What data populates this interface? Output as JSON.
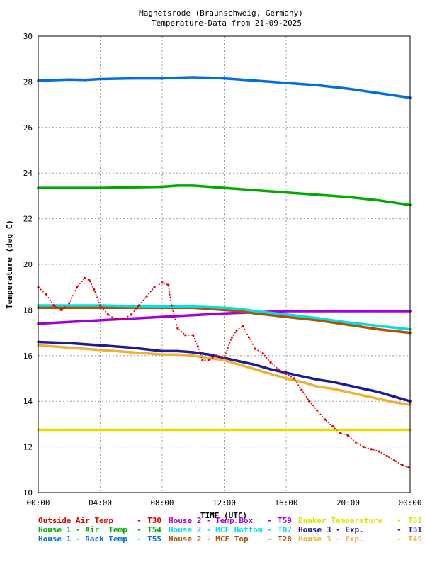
{
  "chart_data": {
    "type": "scatter",
    "title": "Magnetsrode (Braunschweig, Germany)",
    "subtitle": "Temperature-Data from 21-09-2025",
    "xlabel": "TIME (UTC)",
    "ylabel": "Temperature (deg C)",
    "xlim": [
      0,
      24
    ],
    "ylim": [
      10,
      30
    ],
    "xticks": [
      {
        "v": 0,
        "label": "00:00"
      },
      {
        "v": 4,
        "label": "04:00"
      },
      {
        "v": 8,
        "label": "08:00"
      },
      {
        "v": 12,
        "label": "12:00"
      },
      {
        "v": 16,
        "label": "16:00"
      },
      {
        "v": 20,
        "label": "20:00"
      },
      {
        "v": 24,
        "label": "00:00"
      }
    ],
    "yticks": [
      10,
      12,
      14,
      16,
      18,
      20,
      22,
      24,
      26,
      28,
      30
    ],
    "grid": true,
    "legend_position": "bottom",
    "series": [
      {
        "name": "Outside Air Temp",
        "code": "T30",
        "color": "#dd0000",
        "x": [
          0.0,
          0.5,
          1.0,
          1.5,
          2.0,
          2.5,
          3.0,
          3.3,
          3.6,
          4.0,
          4.5,
          5.0,
          5.5,
          6.0,
          6.5,
          7.0,
          7.5,
          8.0,
          8.4,
          8.6,
          9.0,
          9.5,
          10.0,
          10.3,
          10.6,
          11.0,
          11.5,
          12.0,
          12.5,
          12.8,
          13.2,
          13.6,
          14.0,
          14.5,
          15.0,
          15.5,
          16.0,
          16.5,
          17.0,
          17.5,
          18.0,
          18.5,
          19.0,
          19.5,
          20.0,
          20.5,
          21.0,
          21.5,
          22.0,
          22.5,
          23.0,
          23.5,
          23.9
        ],
        "y": [
          19.0,
          18.7,
          18.2,
          18.0,
          18.3,
          19.0,
          19.4,
          19.3,
          18.9,
          18.2,
          17.8,
          17.6,
          17.6,
          17.8,
          18.2,
          18.6,
          19.0,
          19.2,
          19.1,
          18.2,
          17.2,
          16.9,
          16.9,
          16.4,
          15.8,
          15.8,
          16.0,
          15.9,
          16.8,
          17.1,
          17.3,
          16.8,
          16.3,
          16.1,
          15.7,
          15.4,
          15.2,
          15.0,
          14.5,
          14.0,
          13.6,
          13.2,
          12.9,
          12.6,
          12.5,
          12.2,
          12.0,
          11.9,
          11.8,
          11.6,
          11.4,
          11.2,
          11.1
        ]
      },
      {
        "name": "House 1 - Air  Temp",
        "code": "T54",
        "color": "#00aa00",
        "x": [
          0,
          4,
          8,
          9,
          10,
          12,
          14,
          16,
          18,
          20,
          22,
          24
        ],
        "y": [
          23.35,
          23.35,
          23.4,
          23.45,
          23.45,
          23.35,
          23.25,
          23.15,
          23.05,
          22.95,
          22.8,
          22.6
        ]
      },
      {
        "name": "House 1 - Rack Temp",
        "code": "T55",
        "color": "#0070e0",
        "x": [
          0,
          2,
          3,
          4,
          6,
          8,
          9,
          10,
          11,
          12,
          14,
          16,
          18,
          20,
          22,
          24
        ],
        "y": [
          28.05,
          28.1,
          28.08,
          28.12,
          28.15,
          28.15,
          28.18,
          28.2,
          28.18,
          28.15,
          28.05,
          27.95,
          27.85,
          27.7,
          27.5,
          27.3
        ]
      },
      {
        "name": "House 2 - Temp.Box",
        "code": "T59",
        "color": "#a000e0",
        "x": [
          0,
          4,
          8,
          12,
          14,
          16,
          18,
          20,
          22,
          24
        ],
        "y": [
          17.4,
          17.55,
          17.7,
          17.85,
          17.9,
          17.95,
          17.95,
          17.95,
          17.95,
          17.95
        ]
      },
      {
        "name": "House 2 - MCF Bottom",
        "code": "T07",
        "color": "#00e0e0",
        "x": [
          0,
          4,
          8,
          10,
          12,
          13,
          14,
          16,
          18,
          20,
          22,
          24
        ],
        "y": [
          18.2,
          18.2,
          18.15,
          18.15,
          18.1,
          18.05,
          17.95,
          17.8,
          17.65,
          17.45,
          17.3,
          17.15
        ]
      },
      {
        "name": "House 3 - Exp.",
        "code": "T51",
        "color": "#1a1a9a",
        "x": [
          0,
          2,
          4,
          6,
          8,
          9,
          10,
          11,
          12,
          13,
          14,
          15,
          16,
          17,
          18,
          19,
          20,
          21,
          22,
          23,
          24
        ],
        "y": [
          16.6,
          16.55,
          16.45,
          16.35,
          16.2,
          16.2,
          16.15,
          16.05,
          15.9,
          15.75,
          15.6,
          15.4,
          15.25,
          15.1,
          14.95,
          14.85,
          14.7,
          14.55,
          14.4,
          14.2,
          14.0
        ]
      },
      {
        "name": "Bunker Temperature",
        "code": "T31",
        "color": "#e0e000",
        "x": [
          0,
          4,
          8,
          12,
          16,
          20,
          24
        ],
        "y": [
          12.75,
          12.75,
          12.75,
          12.75,
          12.75,
          12.75,
          12.75
        ]
      },
      {
        "name": "House 2 - MCF Top",
        "code": "T28",
        "color": "#b05000",
        "x": [
          0,
          4,
          8,
          10,
          12,
          13,
          14,
          16,
          18,
          20,
          22,
          24
        ],
        "y": [
          18.1,
          18.1,
          18.1,
          18.1,
          18.0,
          17.95,
          17.85,
          17.7,
          17.55,
          17.35,
          17.15,
          17.0
        ]
      },
      {
        "name": "House 3 - Exp.",
        "code": "T49",
        "color": "#f0b030",
        "x": [
          0,
          2,
          4,
          6,
          8,
          9,
          10,
          11,
          12,
          13,
          14,
          15,
          16,
          17,
          18,
          19,
          20,
          21,
          22,
          23,
          24
        ],
        "y": [
          16.45,
          16.35,
          16.25,
          16.15,
          16.05,
          16.05,
          16.0,
          15.9,
          15.8,
          15.6,
          15.4,
          15.2,
          15.0,
          14.85,
          14.65,
          14.55,
          14.4,
          14.25,
          14.1,
          13.95,
          13.85
        ]
      }
    ],
    "legend": [
      {
        "label": "Outside Air Temp    ",
        "code": "T30",
        "color": "#dd0000"
      },
      {
        "label": "House 2 - Temp.Box  ",
        "code": "T59",
        "color": "#a000e0"
      },
      {
        "label": "Bunker Temperature  ",
        "code": "T31",
        "color": "#e0e000"
      },
      {
        "label": "House 1 - Air  Temp ",
        "code": "T54",
        "color": "#00aa00"
      },
      {
        "label": "House 2 - MCF Bottom",
        "code": "T07",
        "color": "#00e0e0"
      },
      {
        "label": "House 3 - Exp.      ",
        "code": "T51",
        "color": "#1a1a9a"
      },
      {
        "label": "House 1 - Rack Temp ",
        "code": "T55",
        "color": "#0070e0"
      },
      {
        "label": "House 2 - MCF Top   ",
        "code": "T28",
        "color": "#b05000"
      },
      {
        "label": "House 3 - Exp.      ",
        "code": "T49",
        "color": "#f0b030"
      }
    ]
  }
}
